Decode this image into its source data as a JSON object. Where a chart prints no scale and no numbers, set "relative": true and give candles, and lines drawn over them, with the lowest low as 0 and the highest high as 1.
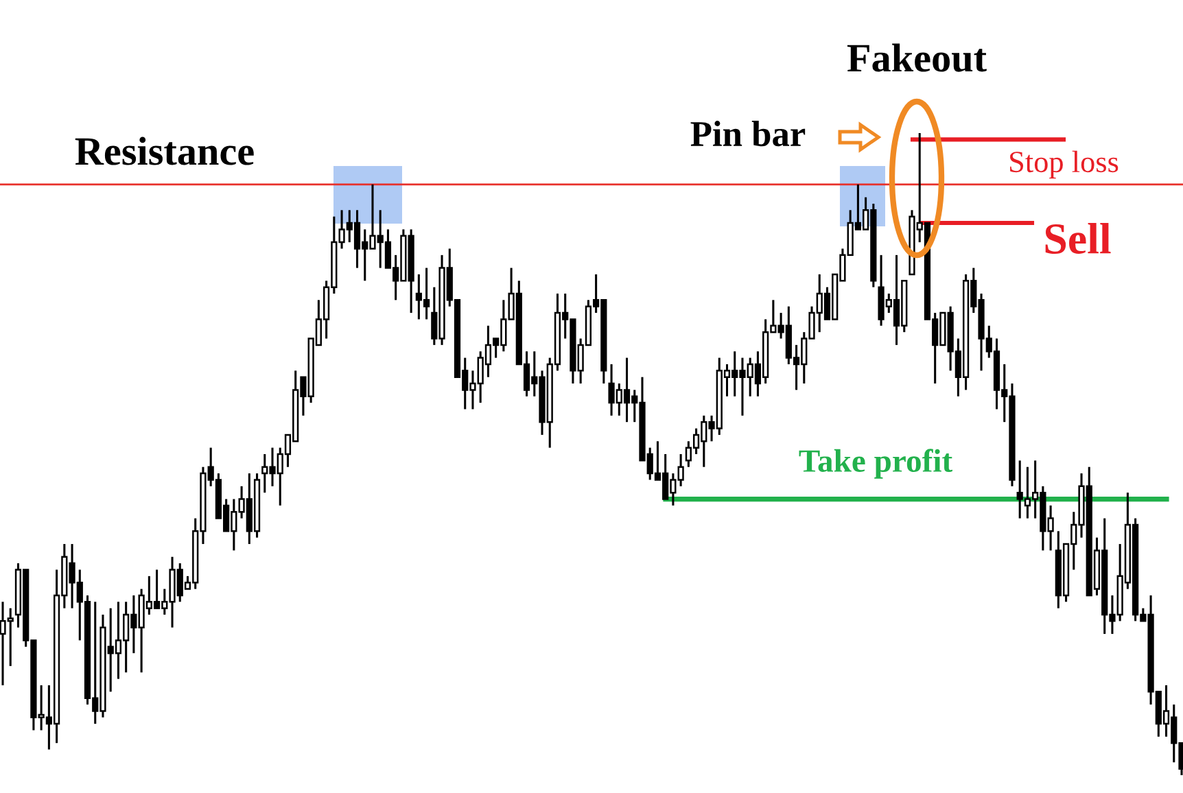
{
  "chart_data": {
    "type": "candlestick",
    "relative": true,
    "categories": [
      null,
      null,
      null,
      null,
      null,
      null,
      null,
      null,
      null,
      null,
      null,
      null,
      null,
      null,
      null,
      null,
      null,
      null,
      null,
      null,
      null,
      null,
      null,
      null,
      null,
      null,
      null,
      null,
      null,
      null,
      null,
      null,
      null,
      null,
      null,
      null,
      null,
      null,
      null,
      null,
      null,
      null,
      null,
      null,
      null,
      null,
      null,
      null,
      null,
      null,
      null,
      null,
      null,
      null,
      null,
      null,
      null,
      null,
      null,
      null,
      null,
      null,
      null,
      null,
      null,
      null,
      null,
      null,
      null,
      null,
      null,
      null,
      null,
      null,
      null,
      null,
      null,
      null,
      null,
      null,
      null,
      null,
      null,
      null,
      null,
      null,
      null,
      null,
      null,
      null,
      null,
      null,
      null,
      null,
      null,
      null,
      null,
      null,
      null,
      null,
      null,
      null,
      null,
      null,
      null,
      null,
      null,
      null,
      null,
      null,
      null,
      null,
      null,
      null,
      null,
      null,
      null,
      null,
      null,
      null,
      null,
      null,
      null,
      null,
      null,
      null,
      null,
      null,
      null,
      null,
      null,
      null,
      null,
      null,
      null,
      null,
      null,
      null,
      null,
      null,
      null,
      null,
      null,
      null,
      null,
      null,
      null,
      null,
      null,
      null,
      null,
      null,
      null,
      null
    ],
    "ohlc": [
      [
        0.22,
        0.27,
        0.14,
        0.24
      ],
      [
        0.24,
        0.26,
        0.17,
        0.24
      ],
      [
        0.25,
        0.33,
        0.23,
        0.32
      ],
      [
        0.32,
        0.32,
        0.2,
        0.21
      ],
      [
        0.21,
        0.21,
        0.07,
        0.09
      ],
      [
        0.09,
        0.14,
        0.07,
        0.09
      ],
      [
        0.09,
        0.14,
        0.04,
        0.08
      ],
      [
        0.08,
        0.32,
        0.05,
        0.28
      ],
      [
        0.28,
        0.36,
        0.26,
        0.34
      ],
      [
        0.33,
        0.36,
        0.26,
        0.3
      ],
      [
        0.3,
        0.32,
        0.21,
        0.27
      ],
      [
        0.27,
        0.28,
        0.11,
        0.12
      ],
      [
        0.12,
        0.27,
        0.08,
        0.1
      ],
      [
        0.1,
        0.25,
        0.09,
        0.23
      ],
      [
        0.2,
        0.26,
        0.13,
        0.19
      ],
      [
        0.19,
        0.27,
        0.15,
        0.21
      ],
      [
        0.21,
        0.27,
        0.16,
        0.25
      ],
      [
        0.25,
        0.28,
        0.19,
        0.23
      ],
      [
        0.23,
        0.29,
        0.16,
        0.28
      ],
      [
        0.26,
        0.31,
        0.25,
        0.27
      ],
      [
        0.27,
        0.32,
        0.26,
        0.26
      ],
      [
        0.26,
        0.29,
        0.25,
        0.27
      ],
      [
        0.27,
        0.34,
        0.23,
        0.32
      ],
      [
        0.32,
        0.33,
        0.27,
        0.28
      ],
      [
        0.29,
        0.31,
        0.29,
        0.3
      ],
      [
        0.3,
        0.4,
        0.29,
        0.38
      ],
      [
        0.38,
        0.48,
        0.36,
        0.47
      ],
      [
        0.48,
        0.51,
        0.45,
        0.46
      ],
      [
        0.46,
        0.47,
        0.4,
        0.4
      ],
      [
        0.42,
        0.43,
        0.38,
        0.38
      ],
      [
        0.38,
        0.43,
        0.35,
        0.41
      ],
      [
        0.41,
        0.45,
        0.4,
        0.43
      ],
      [
        0.43,
        0.47,
        0.36,
        0.38
      ],
      [
        0.38,
        0.47,
        0.37,
        0.46
      ],
      [
        0.47,
        0.5,
        0.44,
        0.48
      ],
      [
        0.48,
        0.51,
        0.45,
        0.47
      ],
      [
        0.47,
        0.51,
        0.42,
        0.5
      ],
      [
        0.5,
        0.53,
        0.48,
        0.53
      ],
      [
        0.52,
        0.63,
        0.52,
        0.6
      ],
      [
        0.62,
        0.62,
        0.56,
        0.59
      ],
      [
        0.59,
        0.68,
        0.58,
        0.68
      ],
      [
        0.67,
        0.74,
        0.67,
        0.71
      ],
      [
        0.71,
        0.77,
        0.68,
        0.76
      ],
      [
        0.76,
        0.87,
        0.75,
        0.83
      ],
      [
        0.83,
        0.88,
        0.82,
        0.85
      ],
      [
        0.86,
        0.88,
        0.83,
        0.85
      ],
      [
        0.86,
        0.88,
        0.79,
        0.82
      ],
      [
        0.83,
        0.85,
        0.77,
        0.82
      ],
      [
        0.82,
        0.92,
        0.82,
        0.84
      ],
      [
        0.84,
        0.88,
        0.79,
        0.83
      ],
      [
        0.83,
        0.85,
        0.79,
        0.79
      ],
      [
        0.79,
        0.81,
        0.74,
        0.77
      ],
      [
        0.77,
        0.85,
        0.77,
        0.84
      ],
      [
        0.84,
        0.85,
        0.72,
        0.77
      ],
      [
        0.75,
        0.78,
        0.71,
        0.74
      ],
      [
        0.74,
        0.79,
        0.71,
        0.73
      ],
      [
        0.72,
        0.76,
        0.67,
        0.68
      ],
      [
        0.68,
        0.81,
        0.67,
        0.79
      ],
      [
        0.79,
        0.82,
        0.73,
        0.74
      ],
      [
        0.74,
        0.74,
        0.62,
        0.62
      ],
      [
        0.63,
        0.65,
        0.57,
        0.6
      ],
      [
        0.6,
        0.63,
        0.57,
        0.61
      ],
      [
        0.61,
        0.66,
        0.58,
        0.65
      ],
      [
        0.64,
        0.7,
        0.62,
        0.67
      ],
      [
        0.68,
        0.68,
        0.65,
        0.67
      ],
      [
        0.67,
        0.74,
        0.66,
        0.71
      ],
      [
        0.71,
        0.79,
        0.71,
        0.75
      ],
      [
        0.75,
        0.77,
        0.64,
        0.64
      ],
      [
        0.64,
        0.66,
        0.59,
        0.6
      ],
      [
        0.62,
        0.66,
        0.59,
        0.61
      ],
      [
        0.62,
        0.63,
        0.53,
        0.55
      ],
      [
        0.55,
        0.65,
        0.51,
        0.64
      ],
      [
        0.64,
        0.75,
        0.63,
        0.72
      ],
      [
        0.72,
        0.75,
        0.68,
        0.71
      ],
      [
        0.71,
        0.71,
        0.61,
        0.63
      ],
      [
        0.63,
        0.68,
        0.61,
        0.67
      ],
      [
        0.67,
        0.74,
        0.67,
        0.73
      ],
      [
        0.74,
        0.78,
        0.72,
        0.73
      ],
      [
        0.74,
        0.74,
        0.61,
        0.63
      ],
      [
        0.61,
        0.64,
        0.56,
        0.58
      ],
      [
        0.58,
        0.61,
        0.56,
        0.6
      ],
      [
        0.6,
        0.65,
        0.55,
        0.58
      ],
      [
        0.59,
        0.6,
        0.55,
        0.58
      ],
      [
        0.58,
        0.62,
        0.49,
        0.49
      ],
      [
        0.5,
        0.51,
        0.46,
        0.47
      ],
      [
        0.47,
        0.52,
        0.46,
        0.46
      ],
      [
        0.47,
        0.5,
        0.43,
        0.43
      ],
      [
        0.44,
        0.47,
        0.42,
        0.46
      ],
      [
        0.46,
        0.5,
        0.45,
        0.48
      ],
      [
        0.49,
        0.52,
        0.48,
        0.51
      ],
      [
        0.51,
        0.54,
        0.5,
        0.53
      ],
      [
        0.52,
        0.56,
        0.48,
        0.55
      ],
      [
        0.55,
        0.56,
        0.52,
        0.54
      ],
      [
        0.54,
        0.65,
        0.53,
        0.63
      ],
      [
        0.62,
        0.64,
        0.59,
        0.63
      ],
      [
        0.63,
        0.66,
        0.59,
        0.62
      ],
      [
        0.63,
        0.65,
        0.56,
        0.62
      ],
      [
        0.62,
        0.65,
        0.59,
        0.64
      ],
      [
        0.64,
        0.66,
        0.59,
        0.61
      ],
      [
        0.62,
        0.71,
        0.61,
        0.69
      ],
      [
        0.69,
        0.74,
        0.69,
        0.7
      ],
      [
        0.7,
        0.72,
        0.68,
        0.69
      ],
      [
        0.7,
        0.73,
        0.64,
        0.65
      ],
      [
        0.65,
        0.67,
        0.6,
        0.64
      ],
      [
        0.64,
        0.69,
        0.61,
        0.68
      ],
      [
        0.68,
        0.73,
        0.68,
        0.72
      ],
      [
        0.72,
        0.78,
        0.69,
        0.75
      ],
      [
        0.75,
        0.76,
        0.71,
        0.71
      ],
      [
        0.71,
        0.78,
        0.71,
        0.78
      ],
      [
        0.77,
        0.82,
        0.77,
        0.81
      ],
      [
        0.81,
        0.88,
        0.81,
        0.86
      ],
      [
        0.86,
        0.92,
        0.85,
        0.85
      ],
      [
        0.85,
        0.9,
        0.85,
        0.88
      ],
      [
        0.88,
        0.89,
        0.76,
        0.77
      ],
      [
        0.76,
        0.81,
        0.7,
        0.71
      ],
      [
        0.73,
        0.75,
        0.72,
        0.74
      ],
      [
        0.74,
        0.81,
        0.67,
        0.7
      ],
      [
        0.7,
        0.77,
        0.69,
        0.77
      ],
      [
        0.78,
        0.88,
        0.78,
        0.87
      ],
      [
        0.85,
        1,
        0.83,
        0.86
      ],
      [
        0.86,
        0.86,
        0.71,
        0.71
      ],
      [
        0.71,
        0.72,
        0.61,
        0.67
      ],
      [
        0.67,
        0.72,
        0.67,
        0.72
      ],
      [
        0.72,
        0.73,
        0.63,
        0.66
      ],
      [
        0.66,
        0.68,
        0.59,
        0.62
      ],
      [
        0.62,
        0.78,
        0.6,
        0.77
      ],
      [
        0.77,
        0.79,
        0.72,
        0.73
      ],
      [
        0.74,
        0.75,
        0.63,
        0.68
      ],
      [
        0.68,
        0.7,
        0.65,
        0.66
      ],
      [
        0.66,
        0.68,
        0.57,
        0.6
      ],
      [
        0.6,
        0.64,
        0.55,
        0.59
      ],
      [
        0.59,
        0.61,
        0.45,
        0.46
      ],
      [
        0.44,
        0.49,
        0.4,
        0.43
      ],
      [
        0.42,
        0.48,
        0.4,
        0.43
      ],
      [
        0.43,
        0.49,
        0.4,
        0.44
      ],
      [
        0.44,
        0.45,
        0.35,
        0.38
      ],
      [
        0.38,
        0.42,
        0.35,
        0.4
      ],
      [
        0.35,
        0.38,
        0.26,
        0.28
      ],
      [
        0.28,
        0.36,
        0.27,
        0.36
      ],
      [
        0.36,
        0.41,
        0.32,
        0.39
      ],
      [
        0.39,
        0.47,
        0.37,
        0.45
      ],
      [
        0.45,
        0.48,
        0.28,
        0.28
      ],
      [
        0.29,
        0.37,
        0.28,
        0.35
      ],
      [
        0.35,
        0.4,
        0.22,
        0.25
      ],
      [
        0.25,
        0.28,
        0.22,
        0.24
      ],
      [
        0.25,
        0.36,
        0.24,
        0.31
      ],
      [
        0.3,
        0.44,
        0.29,
        0.39
      ],
      [
        0.39,
        0.4,
        0.24,
        0.25
      ],
      [
        0.25,
        0.26,
        0.24,
        0.24
      ],
      [
        0.25,
        0.28,
        0.11,
        0.13
      ],
      [
        0.13,
        0.13,
        0.06,
        0.08
      ],
      [
        0.08,
        0.14,
        0.06,
        0.1
      ],
      [
        0.09,
        0.11,
        0.02,
        0.05
      ],
      [
        0.05,
        0.05,
        0,
        0.01
      ]
    ],
    "ref_lines": [
      {
        "axis": "y",
        "value": 0.92,
        "label": "Resistance",
        "color": "#e8302a"
      },
      {
        "axis": "y",
        "value": 0.99,
        "label": "Stop loss",
        "color": "#e81e25"
      },
      {
        "axis": "y",
        "value": 0.86,
        "label": "Sell",
        "color": "#e81e25"
      },
      {
        "axis": "y",
        "value": 0.43,
        "label": "Take profit",
        "color": "#22b14c"
      }
    ],
    "annotations": [
      "Fakeout",
      "Pin bar"
    ]
  }
}
